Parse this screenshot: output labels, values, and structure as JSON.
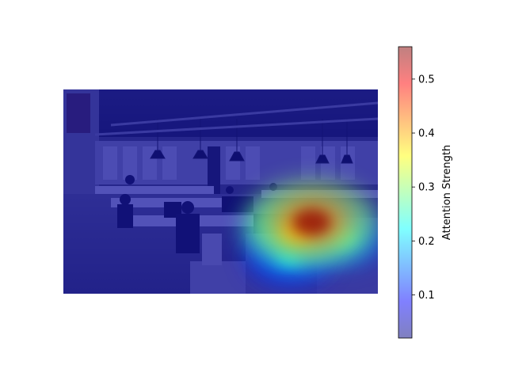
{
  "chart_data": {
    "type": "heatmap",
    "title": "",
    "xlabel": "",
    "ylabel": "",
    "grid": false,
    "background_image": "open-plan-office-photo",
    "overlay_colormap": "jet",
    "overlay_alpha": 0.5,
    "attention_peak": {
      "x_fraction": 0.79,
      "y_fraction": 0.65,
      "value": 0.55
    },
    "attention_regions": [
      {
        "x_fraction": 0.79,
        "y_fraction": 0.65,
        "value": 0.55
      },
      {
        "x_fraction": 0.74,
        "y_fraction": 0.7,
        "value": 0.35
      },
      {
        "x_fraction": 0.88,
        "y_fraction": 0.72,
        "value": 0.25
      },
      {
        "x_fraction": 0.72,
        "y_fraction": 0.82,
        "value": 0.2
      }
    ],
    "colorbar": {
      "label": "Attention Strength",
      "min": 0.02,
      "max": 0.56,
      "ticks": [
        0.1,
        0.2,
        0.3,
        0.4,
        0.5
      ],
      "tick_labels": [
        "0.1",
        "0.2",
        "0.3",
        "0.4",
        "0.5"
      ]
    }
  }
}
